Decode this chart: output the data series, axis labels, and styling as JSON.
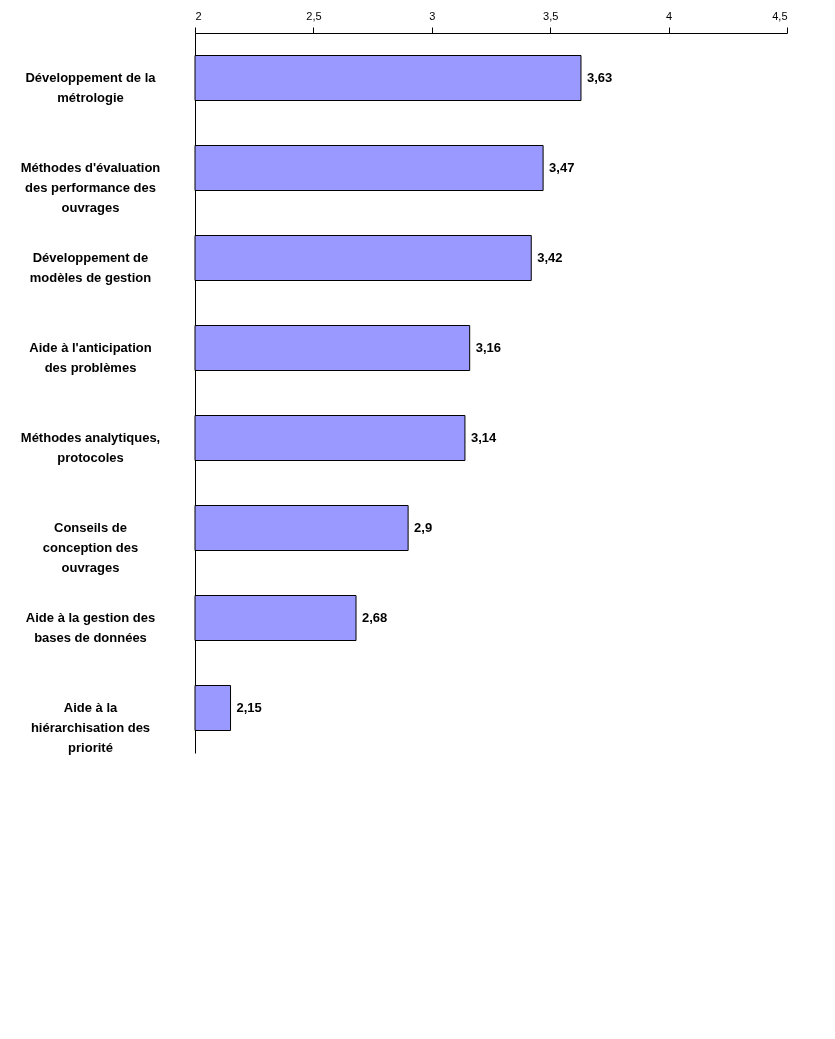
{
  "chart_data": {
    "type": "bar",
    "orientation": "horizontal",
    "categories": [
      "Développement de la métrologie",
      "Méthodes d'évaluation des performance des ouvrages",
      "Développement de modèles de gestion",
      "Aide à l'anticipation des problèmes",
      "Méthodes analytiques, protocoles",
      "Conseils de conception des ouvrages",
      "Aide à la gestion des bases de données",
      "Aide à la hiérarchisation des priorité"
    ],
    "values": [
      3.63,
      3.47,
      3.42,
      3.16,
      3.14,
      2.9,
      2.68,
      2.15
    ],
    "value_labels": [
      "3,63",
      "3,47",
      "3,42",
      "3,16",
      "3,14",
      "2,9",
      "2,68",
      "2,15"
    ],
    "color": "#9999ff",
    "xlim": [
      2,
      4.5
    ],
    "xticks": [
      2,
      {
        "value": 2.5,
        "label": "2,5"
      },
      3,
      {
        "value": 3.5,
        "label": "3,5"
      },
      4,
      {
        "value": 4.5,
        "label": "4,5"
      }
    ],
    "grid": false
  }
}
